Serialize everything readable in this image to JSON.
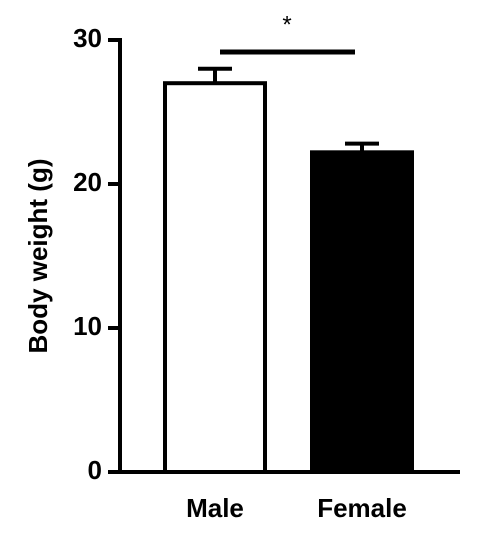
{
  "chart_data": {
    "type": "bar",
    "y_label": "Body weight (g)",
    "categories": [
      "Male",
      "Female"
    ],
    "values": [
      27,
      22.2
    ],
    "errors": [
      1,
      0.6
    ],
    "colors": [
      "#ffffff",
      "#000000"
    ],
    "ylim": [
      0,
      30
    ],
    "yticks": [
      0,
      10,
      20,
      30
    ],
    "annotation": "*"
  }
}
